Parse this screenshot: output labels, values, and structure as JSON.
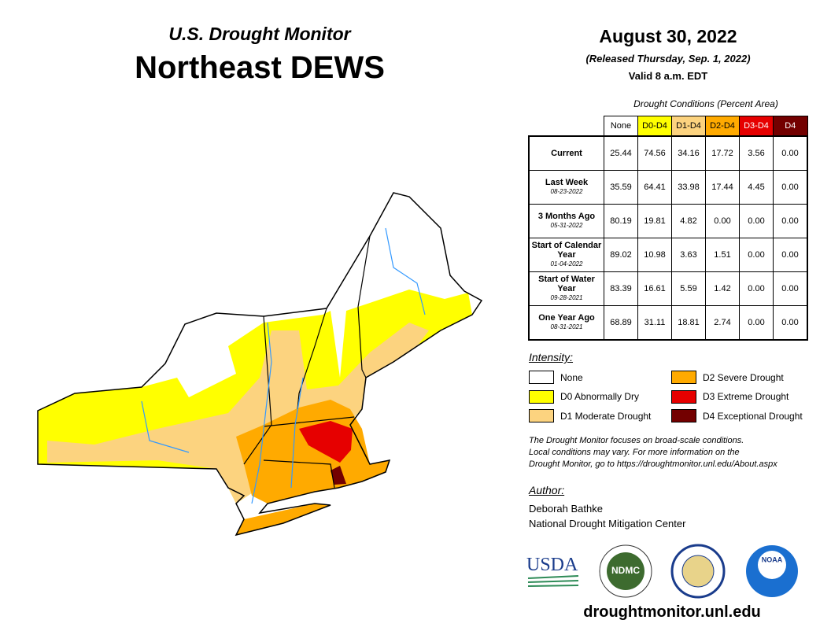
{
  "header": {
    "subtitle": "U.S. Drought Monitor",
    "title": "Northeast DEWS"
  },
  "date": {
    "main": "August 30, 2022",
    "released": "(Released Thursday, Sep. 1, 2022)",
    "valid": "Valid 8 a.m. EDT"
  },
  "table": {
    "caption": "Drought Conditions (Percent Area)",
    "columns": [
      "None",
      "D0-D4",
      "D1-D4",
      "D2-D4",
      "D3-D4",
      "D4"
    ],
    "rows": [
      {
        "label": "Current",
        "values": [
          "25.44",
          "74.56",
          "34.16",
          "17.72",
          "3.56",
          "0.00"
        ]
      },
      {
        "label": "Last Week",
        "date": "08-23-2022",
        "values": [
          "35.59",
          "64.41",
          "33.98",
          "17.44",
          "4.45",
          "0.00"
        ]
      },
      {
        "label": "3 Months Ago",
        "date": "05-31-2022",
        "values": [
          "80.19",
          "19.81",
          "4.82",
          "0.00",
          "0.00",
          "0.00"
        ]
      },
      {
        "label": "Start of Calendar Year",
        "date": "01-04-2022",
        "values": [
          "89.02",
          "10.98",
          "3.63",
          "1.51",
          "0.00",
          "0.00"
        ]
      },
      {
        "label": "Start of Water Year",
        "date": "09-28-2021",
        "values": [
          "83.39",
          "16.61",
          "5.59",
          "1.42",
          "0.00",
          "0.00"
        ]
      },
      {
        "label": "One Year Ago",
        "date": "08-31-2021",
        "values": [
          "68.89",
          "31.11",
          "18.81",
          "2.74",
          "0.00",
          "0.00"
        ]
      }
    ]
  },
  "legend": {
    "title": "Intensity:",
    "items": [
      {
        "label": "None",
        "color": "#ffffff"
      },
      {
        "label": "D0 Abnormally Dry",
        "color": "#ffff00"
      },
      {
        "label": "D1 Moderate Drought",
        "color": "#fcd37f"
      },
      {
        "label": "D2 Severe Drought",
        "color": "#ffaa00"
      },
      {
        "label": "D3 Extreme Drought",
        "color": "#e60000"
      },
      {
        "label": "D4 Exceptional Drought",
        "color": "#730000"
      }
    ]
  },
  "note": [
    "The Drought Monitor focuses on broad-scale conditions.",
    "Local conditions may vary. For more information on the",
    "Drought Monitor, go to https://droughtmonitor.unl.edu/About.aspx"
  ],
  "author": {
    "title": "Author:",
    "lines": [
      "Deborah Bathke",
      "National Drought Mitigation Center"
    ]
  },
  "logos": {
    "usda": "USDA",
    "ndmc": "NDMC",
    "noaa": "NOAA"
  },
  "url": "droughtmonitor.unl.edu"
}
